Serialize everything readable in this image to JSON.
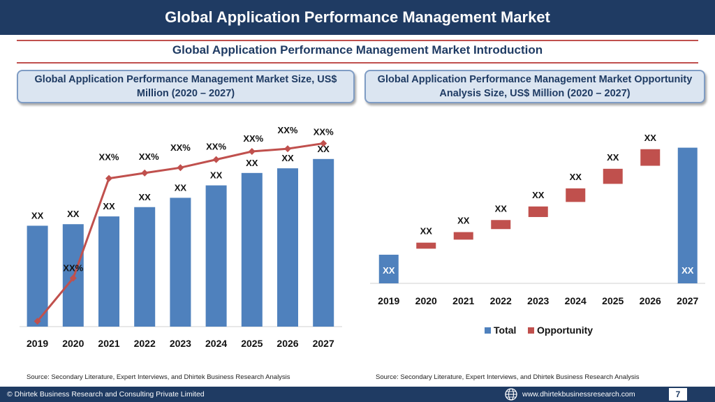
{
  "header": {
    "title": "Global Application Performance Management Market"
  },
  "subtitle": "Global Application Performance Management Market  Introduction",
  "left_panel": {
    "title": "Global Application Performance Management Market  Size, US$ Million (2020 – 2027)",
    "source": "Source: Secondary Literature, Expert Interviews, and Dhirtek Business Research Analysis"
  },
  "right_panel": {
    "title": "Global Application Performance Management Market Opportunity Analysis Size, US$ Million (2020 – 2027)",
    "source": "Source: Secondary Literature, Expert Interviews, and Dhirtek Business Research Analysis"
  },
  "footer": {
    "copyright": "© Dhirtek Business Research and Consulting Private Limited",
    "website": "www.dhirtekbusinessresearch.com",
    "page_number": "7",
    "globe_icon": "globe-icon"
  },
  "colors": {
    "total": "#4f81bd",
    "opportunity": "#c0504d",
    "line": "#c0504d",
    "navy": "#1f3b63"
  },
  "chart_data": [
    {
      "type": "bar",
      "categories": [
        "2019",
        "2020",
        "2021",
        "2022",
        "2023",
        "2024",
        "2025",
        "2026",
        "2027"
      ],
      "series": [
        {
          "type": "bar",
          "values": [
            65,
            66,
            71,
            77,
            83,
            91,
            99,
            102,
            108
          ],
          "labels": [
            "XX",
            "XX",
            "XX",
            "XX",
            "XX",
            "XX",
            "XX",
            "XX",
            "XX"
          ]
        },
        {
          "type": "line",
          "values": [
            -2,
            6,
            24.5,
            25.5,
            26.5,
            28,
            29.5,
            30,
            31
          ],
          "labels": [
            "XX%",
            "XX%",
            "XX%",
            "XX%",
            "XX%",
            "XX%",
            "XX%",
            "XX%",
            "XX%"
          ]
        }
      ],
      "ylim": [
        0,
        125
      ],
      "growth_lim": [
        -3,
        33
      ],
      "grid": false
    },
    {
      "type": "bar",
      "categories": [
        "2019",
        "2020",
        "2021",
        "2022",
        "2023",
        "2024",
        "2025",
        "2026",
        "2027"
      ],
      "waterfall": [
        {
          "kind": "total",
          "value": 19,
          "label": "XX"
        },
        {
          "kind": "opportunity",
          "from": 23,
          "to": 27,
          "label": "XX"
        },
        {
          "kind": "opportunity",
          "from": 29,
          "to": 34,
          "label": "XX"
        },
        {
          "kind": "opportunity",
          "from": 36,
          "to": 42,
          "label": "XX"
        },
        {
          "kind": "opportunity",
          "from": 44,
          "to": 51,
          "label": "XX"
        },
        {
          "kind": "opportunity",
          "from": 54,
          "to": 63,
          "label": "XX"
        },
        {
          "kind": "opportunity",
          "from": 66,
          "to": 76,
          "label": "XX"
        },
        {
          "kind": "opportunity",
          "from": 78,
          "to": 89,
          "label": "XX"
        },
        {
          "kind": "total",
          "value": 90,
          "label": "XX"
        }
      ],
      "legend": [
        {
          "name": "Total",
          "color": "#4f81bd"
        },
        {
          "name": "Opportunity",
          "color": "#c0504d"
        }
      ],
      "legend_position": "bottom",
      "ylim": [
        0,
        100
      ],
      "grid": false
    }
  ]
}
